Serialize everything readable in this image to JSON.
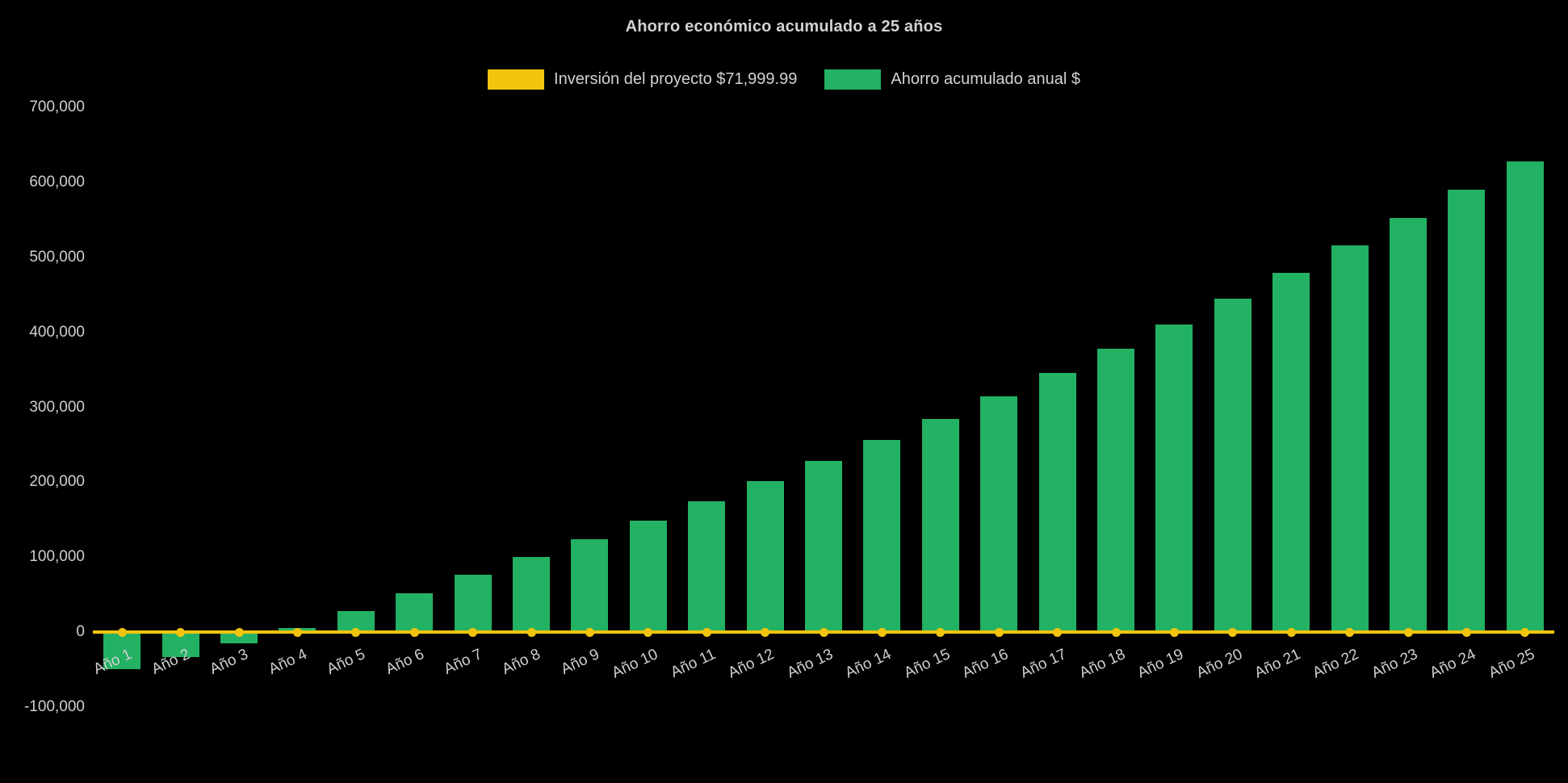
{
  "chart_data": {
    "type": "bar",
    "title": "Ahorro económico acumulado a 25 años",
    "background_color": "#000000",
    "text_color": "#d2d2d2",
    "grid": false,
    "legend_position": "top",
    "xlabel": "",
    "ylabel": "",
    "ylim": [
      -100000,
      700000
    ],
    "y_ticks": [
      -100000,
      0,
      100000,
      200000,
      300000,
      400000,
      500000,
      600000,
      700000
    ],
    "y_tick_labels": [
      "-100,000",
      "0",
      "100,000",
      "200,000",
      "300,000",
      "400,000",
      "500,000",
      "600,000",
      "700,000"
    ],
    "categories": [
      "Año 1",
      "Año 2",
      "Año 3",
      "Año 4",
      "Año 5",
      "Año 6",
      "Año 7",
      "Año 8",
      "Año 9",
      "Año 10",
      "Año 11",
      "Año 12",
      "Año 13",
      "Año 14",
      "Año 15",
      "Año 16",
      "Año 17",
      "Año 18",
      "Año 19",
      "Año 20",
      "Año 21",
      "Año 22",
      "Año 23",
      "Año 24",
      "Año 25"
    ],
    "series": [
      {
        "name": "Inversión del proyecto $71,999.99",
        "type": "line",
        "color": "#f2c40e",
        "marker": "circle",
        "values": [
          0,
          0,
          0,
          0,
          0,
          0,
          0,
          0,
          0,
          0,
          0,
          0,
          0,
          0,
          0,
          0,
          0,
          0,
          0,
          0,
          0,
          0,
          0,
          0,
          0
        ]
      },
      {
        "name": "Ahorro acumulado anual $",
        "type": "bar",
        "color": "#23b163",
        "values": [
          -50000,
          -33000,
          -15000,
          5000,
          28000,
          52000,
          76000,
          100000,
          124000,
          149000,
          175000,
          201000,
          228000,
          256000,
          285000,
          315000,
          346000,
          378000,
          411000,
          445000,
          480000,
          516000,
          553000,
          590000,
          628000
        ]
      }
    ]
  },
  "layout_hints": {
    "x_labels_rotated": true,
    "bars_above_and_below_zero": true
  }
}
